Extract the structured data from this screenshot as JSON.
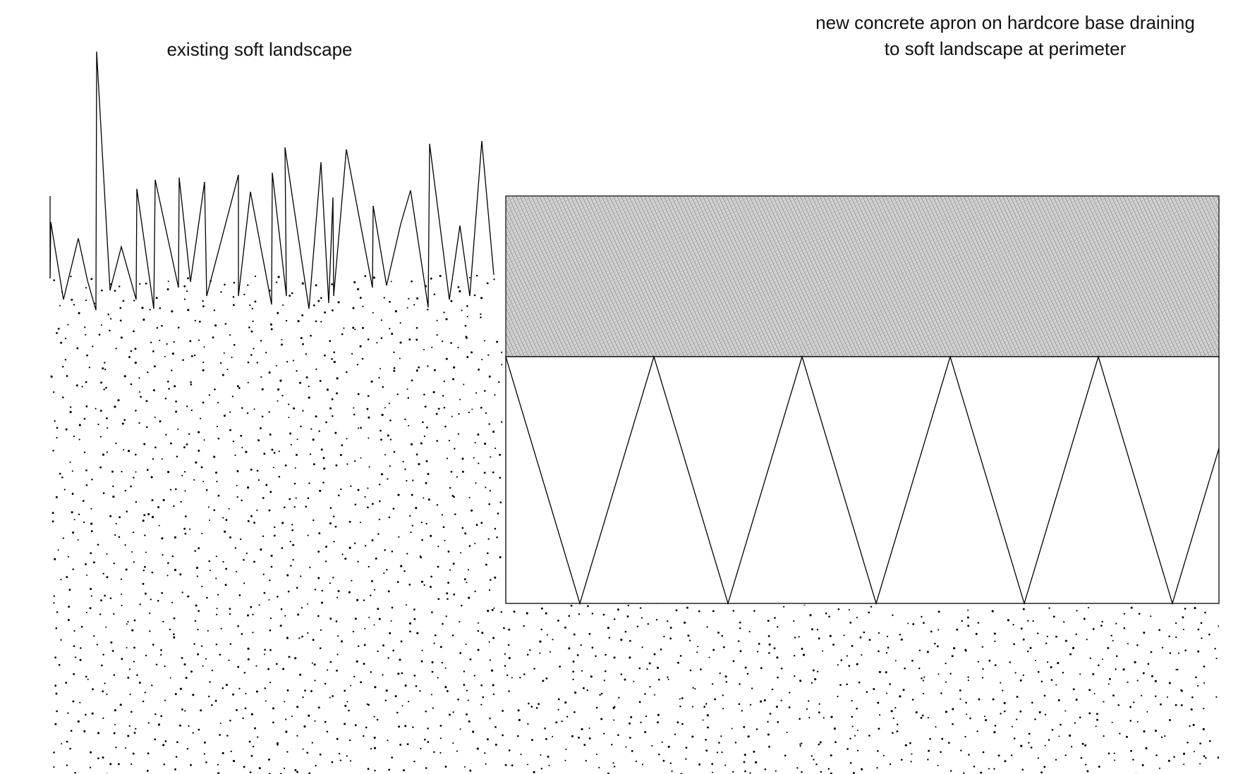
{
  "labels": {
    "existing": "existing soft landscape",
    "new_line1": "new concrete apron on hardcore base draining",
    "new_line2": "to soft landscape at perimeter"
  },
  "colors": {
    "ink": "#000000",
    "concrete_fill": "#c8c8c8",
    "concrete_hatch": "#6a6a6a",
    "background": "#ffffff"
  }
}
